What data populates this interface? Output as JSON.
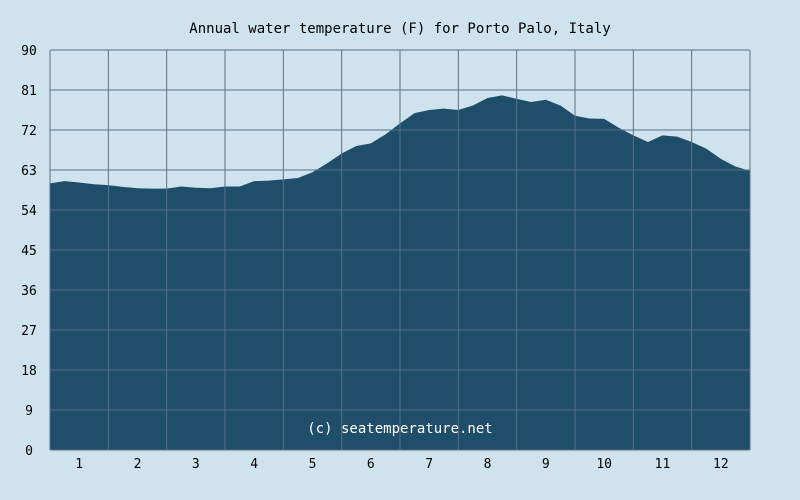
{
  "chart_data": {
    "type": "area",
    "title": "Annual water temperature (F) for Porto Palo, Italy",
    "xlabel": "",
    "ylabel": "",
    "ylim": [
      0,
      90
    ],
    "xlim": [
      0.5,
      12.5
    ],
    "y_ticks": [
      "0",
      "9",
      "18",
      "27",
      "36",
      "45",
      "54",
      "63",
      "72",
      "81",
      "90"
    ],
    "x_ticks": [
      "1",
      "2",
      "3",
      "4",
      "5",
      "6",
      "7",
      "8",
      "9",
      "10",
      "11",
      "12"
    ],
    "grid": true,
    "series": [
      {
        "x": [
          0.5,
          0.75,
          1.0,
          1.25,
          1.5,
          1.75,
          2.0,
          2.25,
          2.5,
          2.75,
          3.0,
          3.25,
          3.5,
          3.75,
          4.0,
          4.25,
          4.5,
          4.75,
          5.0,
          5.25,
          5.5,
          5.75,
          6.0,
          6.25,
          6.5,
          6.75,
          7.0,
          7.25,
          7.5,
          7.75,
          8.0,
          8.25,
          8.5,
          8.75,
          9.0,
          9.25,
          9.5,
          9.75,
          10.0,
          10.25,
          10.5,
          10.75,
          11.0,
          11.25,
          11.5,
          11.75,
          12.0,
          12.25,
          12.5
        ],
        "y": [
          60.0,
          60.5,
          60.2,
          59.8,
          59.6,
          59.2,
          58.9,
          58.8,
          58.8,
          59.3,
          59.0,
          58.9,
          59.3,
          59.3,
          60.5,
          60.6,
          60.9,
          61.2,
          62.5,
          64.5,
          66.7,
          68.4,
          69.0,
          71.0,
          73.5,
          75.8,
          76.5,
          76.8,
          76.5,
          77.5,
          79.2,
          79.8,
          79.0,
          78.3,
          78.8,
          77.5,
          75.2,
          74.6,
          74.5,
          72.5,
          70.8,
          69.3,
          70.8,
          70.5,
          69.3,
          67.8,
          65.5,
          63.8,
          62.8
        ]
      }
    ],
    "colors": {
      "background": "#cfe3ee",
      "fill": "#1f4e6b",
      "grid": "#5a6f84",
      "credit_text": "#ffffff"
    }
  },
  "credit": "(c) seatemperature.net"
}
